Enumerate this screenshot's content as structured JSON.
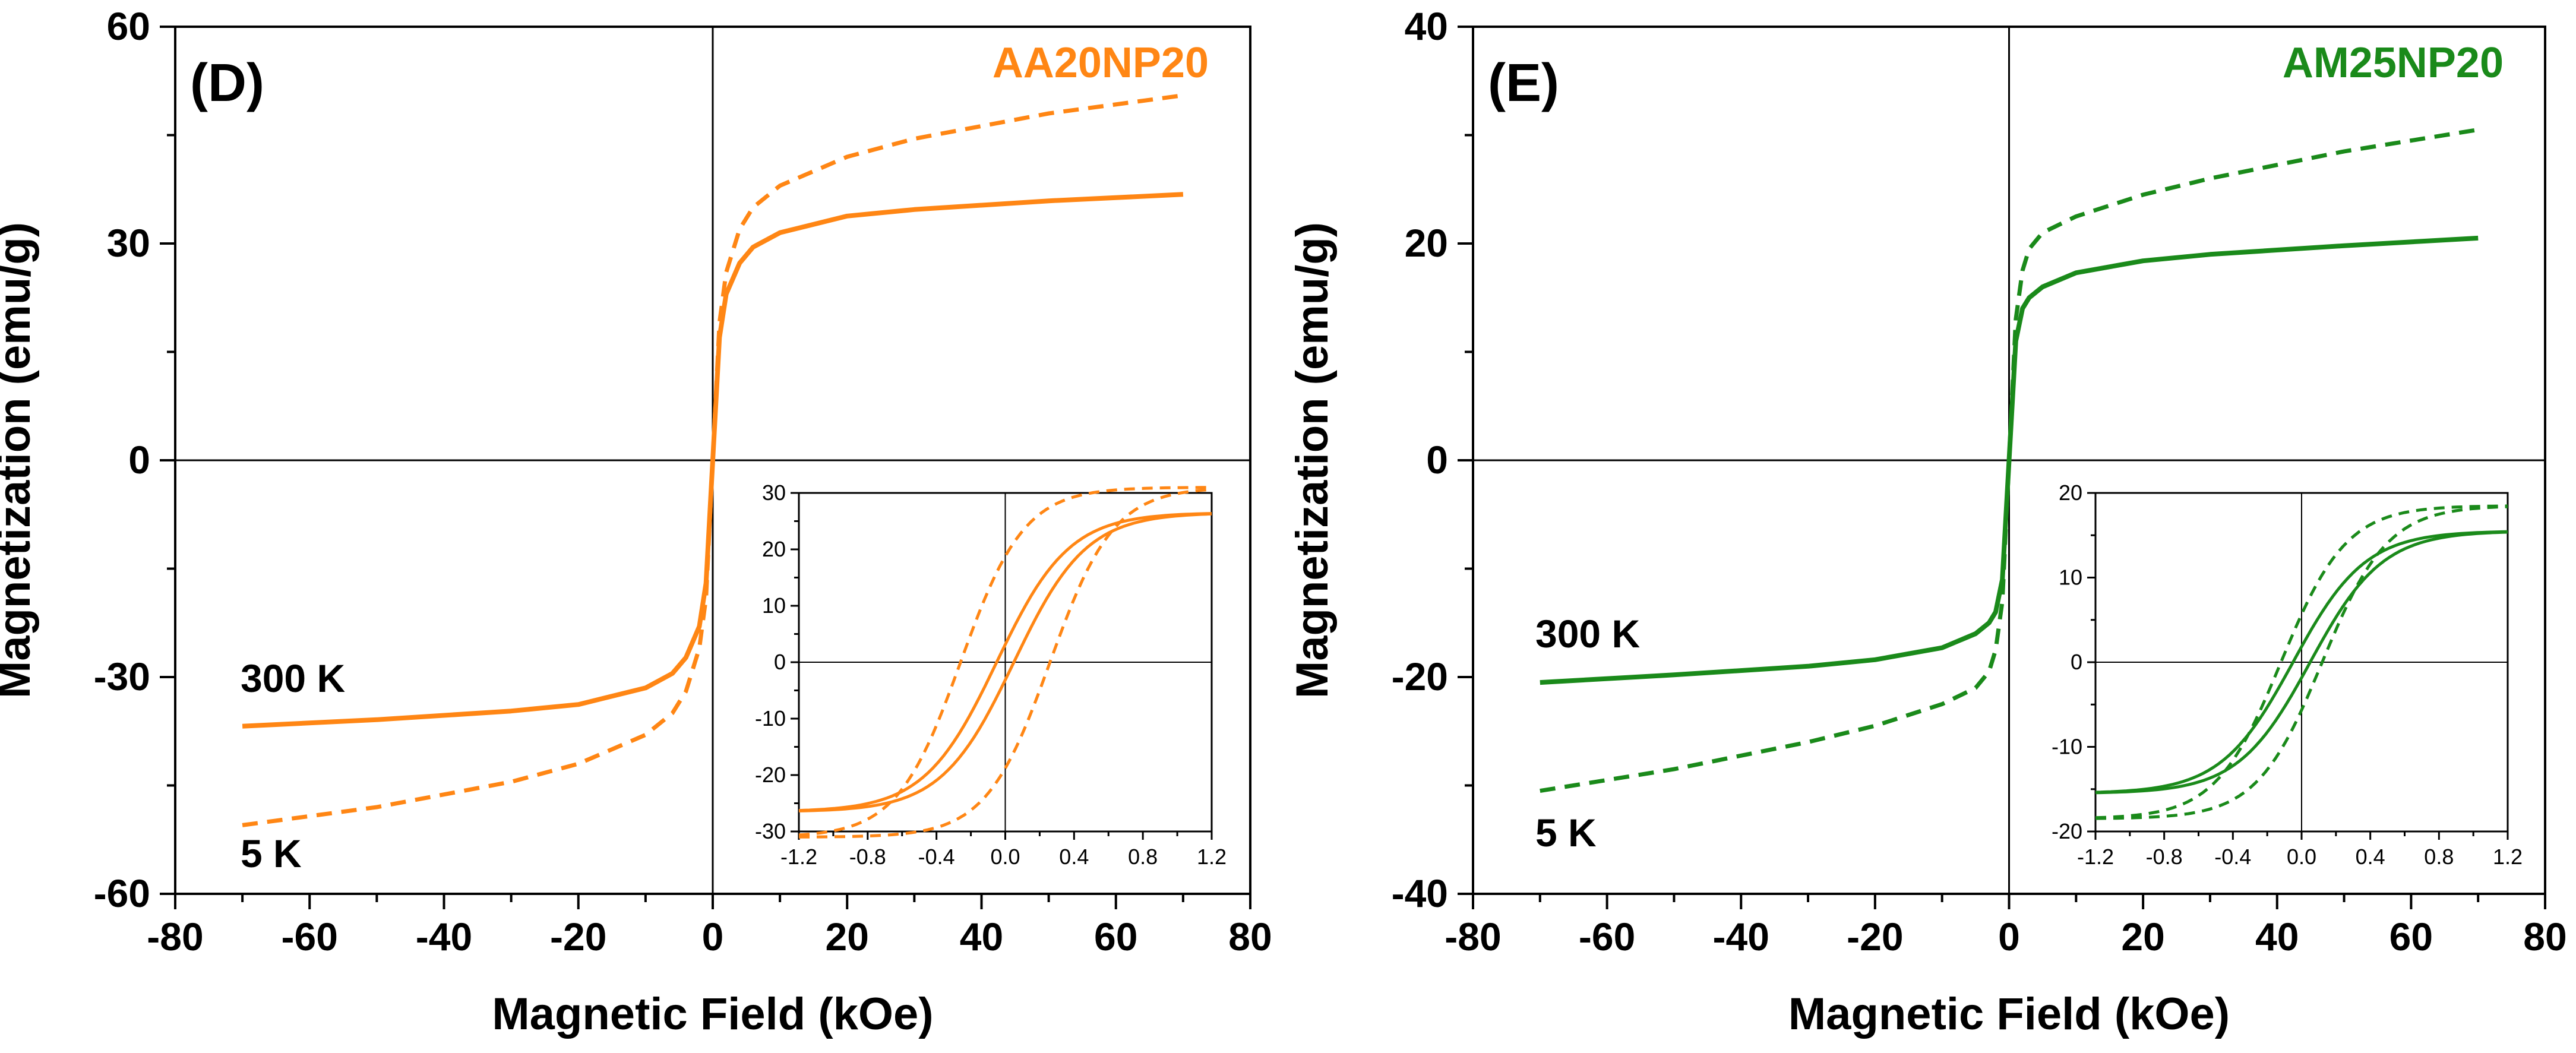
{
  "figure": {
    "x_axis_title": "Magnetic Field (kOe)",
    "y_axis_title": "Magnetization (emu/g)"
  },
  "chart_data": [
    {
      "type": "line",
      "panel_label": "(D)",
      "sample_label": "AA20NP20",
      "color": "#ff8614",
      "xlabel": "Magnetic Field (kOe)",
      "ylabel": "Magnetization (emu/g)",
      "xlim": [
        -80,
        80
      ],
      "ylim": [
        -60,
        60
      ],
      "xticks": [
        -80,
        -60,
        -40,
        -20,
        0,
        20,
        40,
        60,
        80
      ],
      "yticks": [
        -60,
        -30,
        0,
        30,
        60
      ],
      "annotations": [
        "300 K",
        "5 K"
      ],
      "series": [
        {
          "name": "300 K",
          "style": "solid",
          "x": [
            -70,
            -50,
            -30,
            -20,
            -10,
            -6,
            -4,
            -2,
            -1,
            0,
            1,
            2,
            4,
            6,
            10,
            20,
            30,
            50,
            70
          ],
          "y": [
            -36.8,
            -35.9,
            -34.7,
            -33.8,
            -31.5,
            -29.5,
            -27.3,
            -23,
            -17,
            0,
            17,
            23,
            27.3,
            29.5,
            31.5,
            33.8,
            34.7,
            35.9,
            36.8
          ]
        },
        {
          "name": "5 K",
          "style": "dashed",
          "x": [
            -70,
            -50,
            -30,
            -20,
            -10,
            -6,
            -4,
            -2,
            -1,
            0,
            1,
            2,
            4,
            6,
            10,
            20,
            30,
            50,
            70
          ],
          "y": [
            -50.5,
            -48,
            -44.5,
            -42,
            -38,
            -35,
            -32,
            -26,
            -19,
            0,
            19,
            26,
            32,
            35,
            38,
            42,
            44.5,
            48,
            50.5
          ]
        }
      ],
      "inset": {
        "xlim": [
          -1.2,
          1.2
        ],
        "ylim": [
          -30,
          30
        ],
        "xticks": [
          -1.2,
          -0.8,
          -0.4,
          0.0,
          0.4,
          0.8,
          1.2
        ],
        "xtick_labels": [
          "-1.2",
          "-0.8",
          "-0.4",
          "0.0",
          "0.4",
          "0.8",
          "1.2"
        ],
        "yticks": [
          -30,
          -20,
          -10,
          0,
          10,
          20,
          30
        ],
        "series": [
          {
            "name": "300 K",
            "style": "solid",
            "loop_sat": 26.5,
            "loop_hc": 0.05,
            "loop_w": 0.42
          },
          {
            "name": "5 K",
            "style": "dashed",
            "loop_sat": 31,
            "loop_hc": 0.26,
            "loop_w": 0.37
          }
        ]
      }
    },
    {
      "type": "line",
      "panel_label": "(E)",
      "sample_label": "AM25NP20",
      "color": "#1a8a1a",
      "xlabel": "Magnetic Field (kOe)",
      "ylabel": "Magnetization (emu/g)",
      "xlim": [
        -80,
        80
      ],
      "ylim": [
        -40,
        40
      ],
      "xticks": [
        -80,
        -60,
        -40,
        -20,
        0,
        20,
        40,
        60,
        80
      ],
      "yticks": [
        -40,
        -20,
        0,
        20,
        40
      ],
      "annotations": [
        "300 K",
        "5 K"
      ],
      "series": [
        {
          "name": "300 K",
          "style": "solid",
          "x": [
            -70,
            -50,
            -30,
            -20,
            -10,
            -5,
            -3,
            -2,
            -1,
            0,
            1,
            2,
            3,
            5,
            10,
            20,
            30,
            50,
            70
          ],
          "y": [
            -20.5,
            -19.8,
            -19,
            -18.4,
            -17.3,
            -16,
            -15,
            -14,
            -11,
            0,
            11,
            14,
            15,
            16,
            17.3,
            18.4,
            19,
            19.8,
            20.5
          ]
        },
        {
          "name": "5 K",
          "style": "dashed",
          "x": [
            -70,
            -50,
            -30,
            -20,
            -10,
            -5,
            -3,
            -2,
            -1,
            0,
            1,
            2,
            3,
            5,
            10,
            20,
            30,
            50,
            70
          ],
          "y": [
            -30.5,
            -28.5,
            -26,
            -24.5,
            -22.5,
            -21,
            -19.5,
            -17.5,
            -13,
            0,
            13,
            17.5,
            19.5,
            21,
            22.5,
            24.5,
            26,
            28.5,
            30.5
          ]
        }
      ],
      "inset": {
        "xlim": [
          -1.2,
          1.2
        ],
        "ylim": [
          -20,
          20
        ],
        "xticks": [
          -1.2,
          -0.8,
          -0.4,
          0.0,
          0.4,
          0.8,
          1.2
        ],
        "xtick_labels": [
          "-1.2",
          "-0.8",
          "-0.4",
          "0.0",
          "0.4",
          "0.8",
          "1.2"
        ],
        "yticks": [
          -20,
          -10,
          0,
          10,
          20
        ],
        "series": [
          {
            "name": "300 K",
            "style": "solid",
            "loop_sat": 15.5,
            "loop_hc": 0.05,
            "loop_w": 0.42
          },
          {
            "name": "5 K",
            "style": "dashed",
            "loop_sat": 18.5,
            "loop_hc": 0.12,
            "loop_w": 0.38
          }
        ]
      }
    }
  ]
}
